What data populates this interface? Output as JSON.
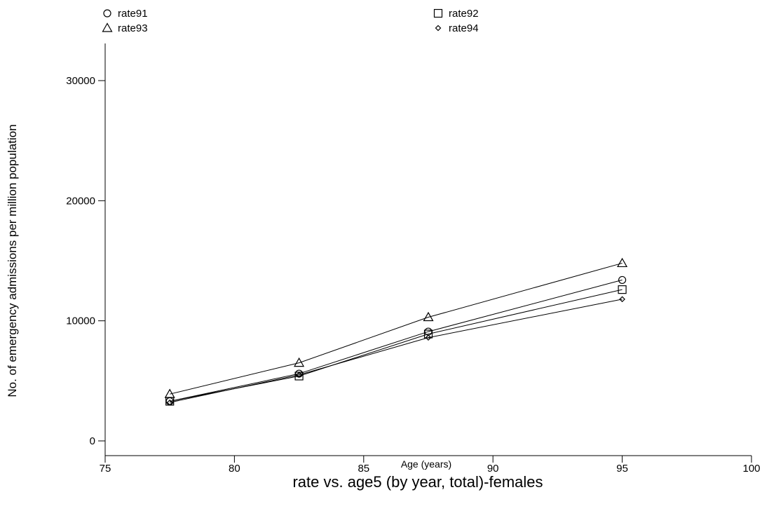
{
  "chart_data": {
    "type": "line",
    "title": "rate vs. age5 (by year, total)-females",
    "xlabel": "Age (years)",
    "ylabel": "No. of emergency admissions per million population",
    "xlim": [
      75,
      100
    ],
    "ylim": [
      0,
      32000
    ],
    "x_ticks": [
      75,
      80,
      85,
      90,
      95,
      100
    ],
    "y_ticks": [
      0,
      10000,
      20000,
      30000
    ],
    "grid": false,
    "legend_position": "top",
    "x": [
      77.5,
      82.5,
      87.5,
      95
    ],
    "series": [
      {
        "name": "rate91",
        "marker": "circle",
        "values": [
          3300,
          5600,
          9100,
          13400
        ]
      },
      {
        "name": "rate92",
        "marker": "square",
        "values": [
          3300,
          5400,
          8900,
          12600
        ]
      },
      {
        "name": "rate93",
        "marker": "triangle",
        "values": [
          3900,
          6500,
          10300,
          14800
        ]
      },
      {
        "name": "rate94",
        "marker": "diamond",
        "values": [
          3200,
          5500,
          8600,
          11800
        ]
      }
    ]
  }
}
